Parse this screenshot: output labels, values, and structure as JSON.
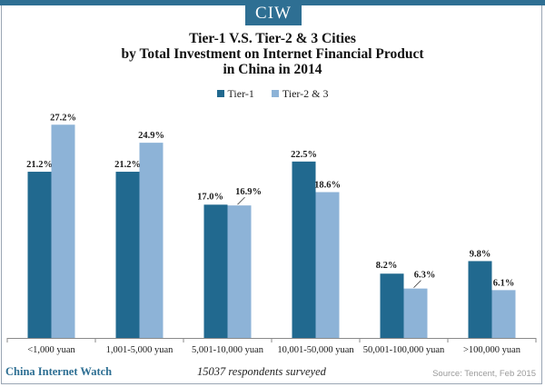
{
  "logo": "CIW",
  "title_lines": [
    "Tier-1 V.S. Tier-2 & 3 Cities",
    "by Total Investment on Internet Financial Product",
    "in China in 2014"
  ],
  "footer": {
    "brand": "China Internet Watch",
    "note": "15037 respondents surveyed",
    "source": "Source: Tencent, Feb 2015"
  },
  "colors": {
    "tier1": "#21698f",
    "tier23": "#8db3d7",
    "accent": "#2e6f93"
  },
  "chart_data": {
    "type": "bar",
    "title": "Tier-1 V.S. Tier-2 & 3 Cities by Total Investment on Internet Financial Product in China in 2014",
    "categories": [
      "<1,000 yuan",
      "1,001-5,000 yuan",
      "5,001-10,000 yuan",
      "10,001-50,000 yuan",
      "50,001-100,000 yuan",
      ">100,000 yuan"
    ],
    "series": [
      {
        "name": "Tier-1",
        "values": [
          21.2,
          21.2,
          17.0,
          22.5,
          8.2,
          9.8
        ],
        "labels": [
          "21.2%",
          "21.2%",
          "17.0%",
          "22.5%",
          "8.2%",
          "9.8%"
        ]
      },
      {
        "name": "Tier-2 & 3",
        "values": [
          27.2,
          24.9,
          16.9,
          18.6,
          6.3,
          6.1
        ],
        "labels": [
          "27.2%",
          "24.9%",
          "16.9%",
          "18.6%",
          "6.3%",
          "6.1%"
        ]
      }
    ],
    "xlabel": "",
    "ylabel": "",
    "ylim": [
      0,
      30
    ],
    "legend": "top-center",
    "grid": false
  }
}
